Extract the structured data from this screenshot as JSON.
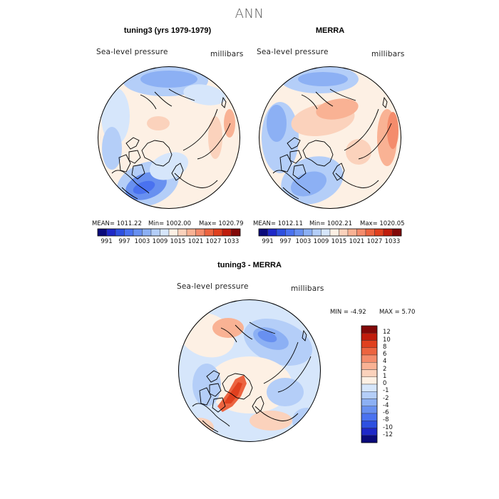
{
  "page": {
    "title": "ANN"
  },
  "colors": {
    "scale_full": [
      "#0a0a7a",
      "#1e28c8",
      "#2e50e0",
      "#4a72f0",
      "#6890f0",
      "#8cb0f4",
      "#b4cef8",
      "#d6e6fb",
      "#fdf0e4",
      "#fbd2bc",
      "#f9b294",
      "#f48c6c",
      "#ec6440",
      "#e0401e",
      "#c01c0c",
      "#820808"
    ],
    "scale_diff": [
      "#0a0a7a",
      "#1e28c8",
      "#2e50e0",
      "#4a72f0",
      "#6890f0",
      "#8cb0f4",
      "#b4cef8",
      "#d6e6fb",
      "#fdf0e4",
      "#fbd2bc",
      "#f9b294",
      "#f48c6c",
      "#ec6440",
      "#e0401e",
      "#c01c0c",
      "#820808"
    ]
  },
  "chart_data": [
    {
      "type": "heatmap",
      "title": "tuning3 (yrs 1979-1979)",
      "subtitle": "Sea-level pressure",
      "units": "millibars",
      "projection": "north-polar-stereographic",
      "stats": {
        "mean": "MEAN= 1011.22",
        "min": "Min= 1002.00",
        "max": "Max= 1020.79"
      },
      "colorbar": {
        "orientation": "horizontal",
        "labels": [
          "991",
          "997",
          "1003",
          "1009",
          "1015",
          "1021",
          "1027",
          "1033"
        ]
      }
    },
    {
      "type": "heatmap",
      "title": "MERRA",
      "subtitle": "Sea-level pressure",
      "units": "millibars",
      "projection": "north-polar-stereographic",
      "stats": {
        "mean": "MEAN= 1012.11",
        "min": "Min= 1002.21",
        "max": "Max= 1020.05"
      },
      "colorbar": {
        "orientation": "horizontal",
        "labels": [
          "991",
          "997",
          "1003",
          "1009",
          "1015",
          "1021",
          "1027",
          "1033"
        ]
      }
    },
    {
      "type": "heatmap",
      "title": "tuning3 - MERRA",
      "subtitle": "Sea-level pressure",
      "units": "millibars",
      "projection": "north-polar-stereographic",
      "stats": {
        "min": "MIN = -4.92",
        "max": "MAX = 5.70"
      },
      "colorbar": {
        "orientation": "vertical",
        "labels": [
          "12",
          "10",
          "8",
          "6",
          "4",
          "2",
          "1",
          "0",
          "-1",
          "-2",
          "-4",
          "-6",
          "-8",
          "-10",
          "-12"
        ]
      }
    }
  ]
}
